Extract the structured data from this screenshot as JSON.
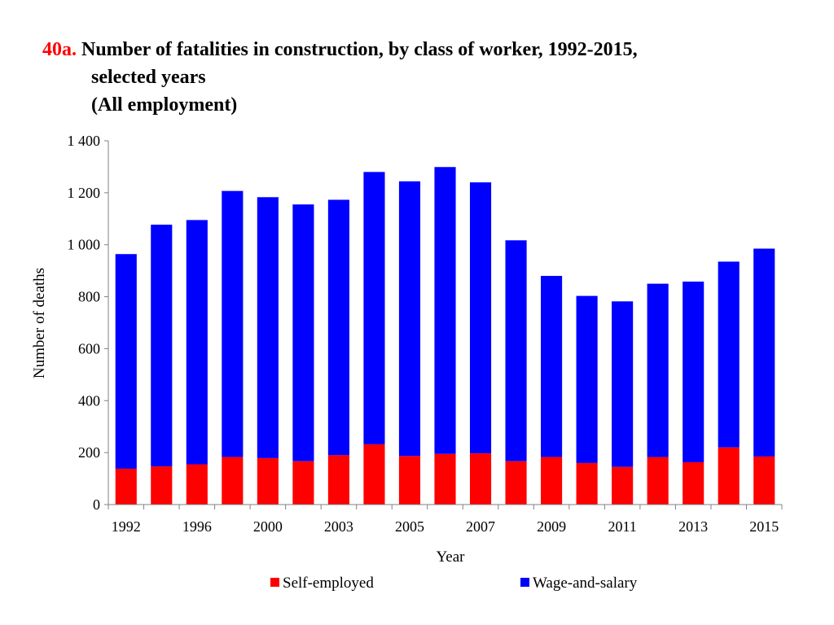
{
  "title": {
    "prefix": "40a.",
    "line1": "Number of fatalities in construction, by class of worker, 1992-2015,",
    "line2": "selected years",
    "line3": "(All employment)"
  },
  "chart_data": {
    "type": "bar",
    "stacked": true,
    "categories": [
      "1992",
      "1994",
      "1996",
      "1998",
      "2000",
      "2002",
      "2003",
      "2004",
      "2005",
      "2006",
      "2007",
      "2008",
      "2009",
      "2010",
      "2011",
      "2012",
      "2013",
      "2014",
      "2015"
    ],
    "tick_labels": [
      "1992",
      "1996",
      "2000",
      "2003",
      "2005",
      "2007",
      "2009",
      "2011",
      "2013",
      "2015"
    ],
    "tick_label_category_index": [
      0,
      2,
      4,
      6,
      8,
      10,
      12,
      14,
      16,
      18
    ],
    "series": [
      {
        "name": "Self-employed",
        "color": "#ff0000",
        "values": [
          138,
          147,
          155,
          183,
          179,
          167,
          190,
          232,
          187,
          195,
          197,
          167,
          183,
          160,
          145,
          183,
          163,
          220,
          185
        ]
      },
      {
        "name": "Wage-and-salary",
        "color": "#0000ff",
        "values": [
          826,
          930,
          940,
          1024,
          1004,
          988,
          983,
          1048,
          1057,
          1104,
          1043,
          850,
          697,
          643,
          637,
          667,
          695,
          715,
          800
        ]
      }
    ],
    "xlabel": "Year",
    "ylabel": "Number of deaths",
    "ylim": [
      0,
      1400
    ],
    "yticks": [
      0,
      200,
      400,
      600,
      800,
      1000,
      1200,
      1400
    ],
    "ytick_labels": [
      "0",
      "200",
      "400",
      "600",
      "800",
      "1 000",
      "1 200",
      "1 400"
    ],
    "grid": false,
    "legend_position": "bottom"
  }
}
